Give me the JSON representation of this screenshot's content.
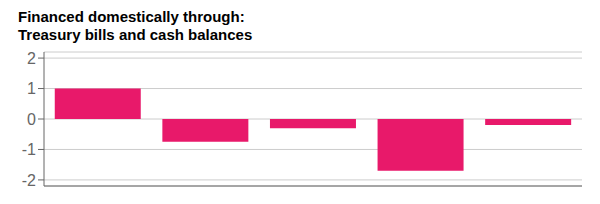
{
  "chart_data": {
    "type": "bar",
    "title": "Financed domestically through:",
    "subtitle": "Treasury bills and cash balances",
    "categories": [
      null,
      null,
      null,
      null,
      null
    ],
    "values": [
      1.0,
      -0.75,
      -0.3,
      -1.7,
      -0.2
    ],
    "color": "#e8196a",
    "ylim": [
      -2.2,
      2.2
    ],
    "yticks": [
      -2,
      -1,
      0,
      1,
      2
    ],
    "grid": true,
    "tick_labels": "y"
  }
}
